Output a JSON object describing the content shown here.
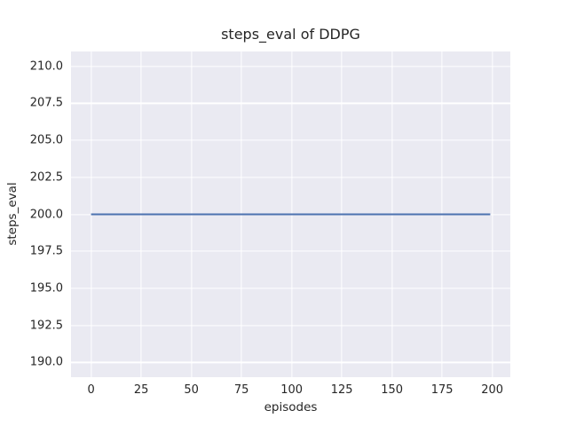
{
  "figure": {
    "background": "#ffffff",
    "plot_background": "#eaeaf2",
    "grid_color": "#ffffff",
    "text_color": "#262626"
  },
  "chart_data": {
    "type": "line",
    "title": "steps_eval of DDPG",
    "xlabel": "episodes",
    "ylabel": "steps_eval",
    "xlim": [
      -10,
      209
    ],
    "ylim": [
      189,
      211
    ],
    "x_ticks": [
      "0",
      "25",
      "50",
      "75",
      "100",
      "125",
      "150",
      "175",
      "200"
    ],
    "y_ticks": [
      "190.0",
      "192.5",
      "195.0",
      "197.5",
      "200.0",
      "202.5",
      "205.0",
      "207.5",
      "210.0"
    ],
    "grid": true,
    "legend_position": "none",
    "series": [
      {
        "name": "steps_eval",
        "color": "#4c72b0",
        "line_width": 2,
        "x": [
          0,
          199
        ],
        "y": [
          200,
          200
        ]
      }
    ]
  }
}
